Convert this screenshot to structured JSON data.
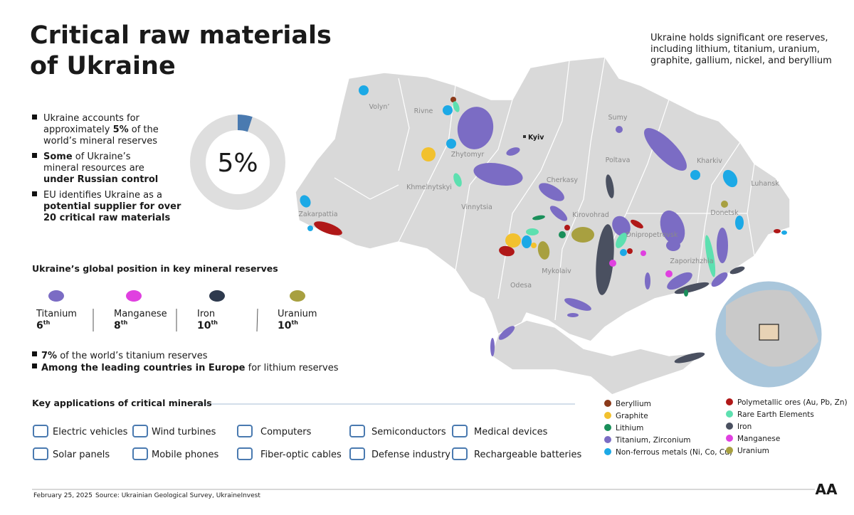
{
  "header": {
    "title": [
      "Critical raw materials",
      "of Ukraine"
    ],
    "summary": [
      "Ukraine holds significant ore reserves,",
      "including lithium, titanium, uranium,",
      "graphite, gallium, nickel, and beryllium"
    ]
  },
  "bullets": [
    [
      [
        {
          "text": "Ukraine accounts for"
        }
      ],
      [
        {
          "text": "approximately "
        },
        {
          "text": "5%",
          "bold": true
        },
        {
          "text": " of the"
        }
      ],
      [
        {
          "text": "world’s mineral reserves"
        }
      ]
    ],
    [
      [
        {
          "text": "Some",
          "bold": true
        },
        {
          "text": " of Ukraine’s"
        }
      ],
      [
        {
          "text": "mineral resources are"
        }
      ],
      [
        {
          "text": "under Russian control",
          "bold": true
        }
      ]
    ],
    [
      [
        {
          "text": "EU identifies Ukraine as a"
        }
      ],
      [
        {
          "text": "potential supplier for over",
          "bold": true
        }
      ],
      [
        {
          "text": "20 critical raw materials",
          "bold": true
        }
      ]
    ]
  ],
  "chart_data": {
    "type": "donut",
    "values": [
      5
    ],
    "value_labels": [
      "5%"
    ],
    "color": "#4a7ab0",
    "track_color": "#dedede"
  },
  "rankings": {
    "title": "Ukraine’s global position in key mineral reserves",
    "items": [
      {
        "name": "Titanium",
        "rank": "6",
        "suffix": "th"
      },
      {
        "name": "Manganese",
        "rank": "8",
        "suffix": "th"
      },
      {
        "name": "Iron",
        "rank": "10",
        "suffix": "th"
      },
      {
        "name": "Uranium",
        "rank": "10",
        "suffix": "th"
      }
    ]
  },
  "facts": [
    [
      {
        "text": "7%",
        "bold": true
      },
      {
        "text": " of the world’s titanium reserves"
      }
    ],
    [
      {
        "text": "Among the leading countries in Europe",
        "bold": true
      },
      {
        "text": " for lithium reserves"
      }
    ]
  ],
  "applications": {
    "title": "Key applications of critical minerals",
    "items": [
      "Electric vehicles",
      "Wind turbines",
      "Computers",
      "Semiconductors",
      "Medical devices",
      "Solar panels",
      "Mobile phones",
      "Fiber-optic cables",
      "Defense industry",
      "Rechargeable batteries"
    ]
  },
  "map": {
    "regions": [
      "Volyn’",
      "Rivne",
      "Zhytomyr",
      "Sumy",
      "Poltava",
      "Kharkiv",
      "Luhansk",
      "Donetsk",
      "Dnipropetrovsk",
      "Zaporizhzhia",
      "Kirovohrad",
      "Cherkasy",
      "Vinnytsia",
      "Khmelnytskyi",
      "Zakarpattia",
      "Mykolaiv",
      "Odesa"
    ],
    "capital": "Kyiv"
  },
  "legend": [
    {
      "name": "Beryllium",
      "color": "#8b3a1a"
    },
    {
      "name": "Graphite",
      "color": "#f2c12e"
    },
    {
      "name": "Lithium",
      "color": "#1a8f5a"
    },
    {
      "name": "Titanium, Zirconium",
      "color": "#7b6cc4"
    },
    {
      "name": "Non-ferrous metals (Ni, Co, Cu)",
      "color": "#1ca9e6"
    },
    {
      "name": "Polymetallic ores (Au, Pb, Zn)",
      "color": "#b01818"
    },
    {
      "name": "Rare Earth Elements",
      "color": "#5de0b0"
    },
    {
      "name": "Iron",
      "color": "#4a5060"
    },
    {
      "name": "Manganese",
      "color": "#e040e0"
    },
    {
      "name": "Uranium",
      "color": "#a8a040"
    }
  ],
  "footer": {
    "date": "February 25, 2025",
    "source": "Source: Ukrainian Geological Survey, UkraineInvest",
    "logo": "AA"
  }
}
